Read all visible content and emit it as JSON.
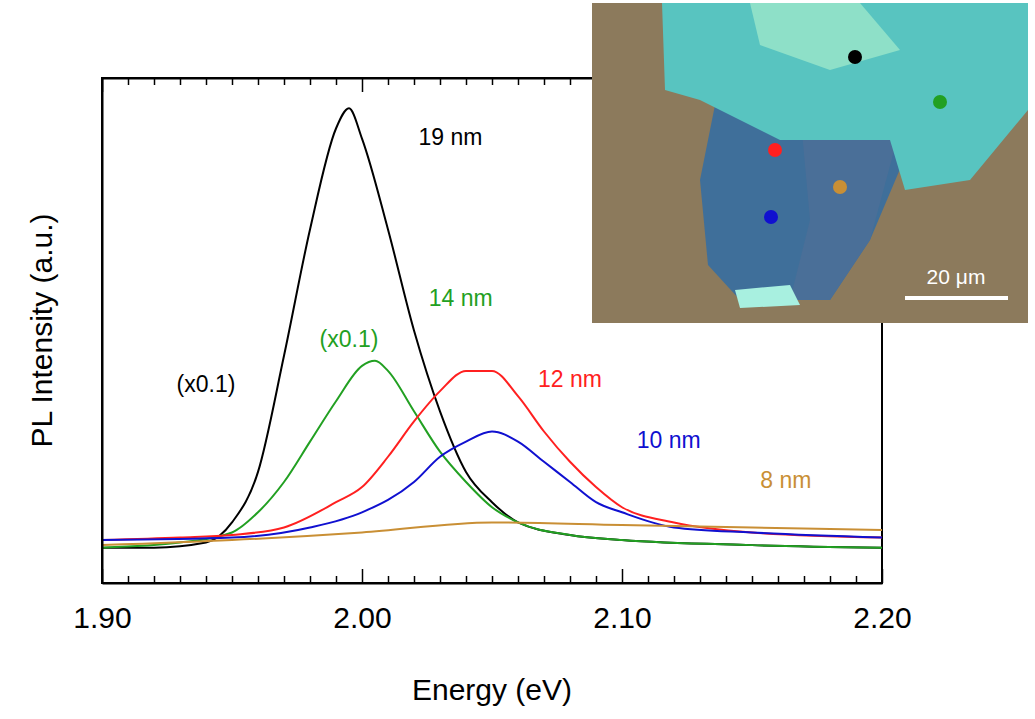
{
  "chart_data": {
    "type": "line",
    "x_label": "Energy (eV)",
    "y_label": "PL Intensity (a.u.)",
    "xlim": [
      1.9,
      2.2
    ],
    "xticks": [
      {
        "value": 1.9,
        "label": "1.90"
      },
      {
        "value": 2.0,
        "label": "2.00"
      },
      {
        "value": 2.1,
        "label": "2.10"
      },
      {
        "value": 2.2,
        "label": "2.20"
      }
    ],
    "minor_xticks": [
      1.91,
      1.92,
      1.93,
      1.94,
      1.95,
      1.96,
      1.97,
      1.98,
      1.99,
      2.01,
      2.02,
      2.03,
      2.04,
      2.05,
      2.06,
      2.07,
      2.08,
      2.09,
      2.11,
      2.12,
      2.13,
      2.14,
      2.15,
      2.16,
      2.17,
      2.18,
      2.19
    ],
    "ylim": [
      0,
      100
    ],
    "tick_labels": "x",
    "grid": false,
    "series": [
      {
        "name": "19 nm",
        "color": "#000000",
        "label_x": 2.034,
        "label_y": 88,
        "x": [
          1.9,
          1.92,
          1.94,
          1.95,
          1.96,
          1.97,
          1.98,
          1.99,
          1.995,
          2.0,
          2.01,
          2.02,
          2.03,
          2.04,
          2.05,
          2.06,
          2.08,
          2.1,
          2.15,
          2.2
        ],
        "values": [
          7,
          7,
          8,
          12,
          22,
          45,
          70,
          90,
          94,
          88,
          70,
          50,
          34,
          22,
          16,
          12,
          9.5,
          8.5,
          7.5,
          7
        ]
      },
      {
        "name": "14 nm",
        "color": "#22a022",
        "label_x": 2.038,
        "label_y": 56,
        "x": [
          1.9,
          1.93,
          1.95,
          1.96,
          1.97,
          1.98,
          1.99,
          2.0,
          2.005,
          2.01,
          2.02,
          2.03,
          2.04,
          2.05,
          2.06,
          2.08,
          2.1,
          2.15,
          2.2
        ],
        "values": [
          7,
          8,
          10,
          14,
          20,
          28,
          36,
          43,
          44,
          42,
          34,
          26,
          20,
          15,
          12,
          9.5,
          8.5,
          7.5,
          7
        ]
      },
      {
        "name": "12 nm",
        "color": "#ff2020",
        "label_x": 2.08,
        "label_y": 40,
        "x": [
          1.9,
          1.93,
          1.95,
          1.97,
          1.99,
          2.0,
          2.01,
          2.02,
          2.03,
          2.04,
          2.05,
          2.06,
          2.07,
          2.08,
          2.09,
          2.1,
          2.12,
          2.15,
          2.2
        ],
        "values": [
          8.5,
          9,
          9.5,
          11,
          16,
          19,
          25,
          32,
          38,
          42,
          42,
          37,
          30,
          24,
          19,
          15,
          12,
          10,
          9
        ]
      },
      {
        "name": "10 nm",
        "color": "#1010d0",
        "label_x": 2.118,
        "label_y": 28,
        "x": [
          1.9,
          1.95,
          1.98,
          2.0,
          2.02,
          2.03,
          2.04,
          2.05,
          2.06,
          2.07,
          2.08,
          2.09,
          2.1,
          2.12,
          2.15,
          2.2
        ],
        "values": [
          8.5,
          9,
          11,
          14,
          20,
          25,
          28,
          30,
          28,
          24,
          20,
          16,
          14,
          11,
          10,
          9
        ]
      },
      {
        "name": "8 nm",
        "color": "#c98f35",
        "label_x": 2.163,
        "label_y": 20,
        "x": [
          1.9,
          1.95,
          2.0,
          2.05,
          2.1,
          2.15,
          2.2
        ],
        "values": [
          7.5,
          8.5,
          10,
          12,
          11.5,
          11,
          10.5
        ]
      }
    ],
    "annotations": [
      {
        "text": "(x0.1)",
        "x": 1.94,
        "y": 39,
        "color": "#000000"
      },
      {
        "text": "(x0.1)",
        "x": 1.995,
        "y": 48,
        "color": "#22a022"
      }
    ],
    "inset": {
      "scale_bar_label": "20 μm"
    }
  }
}
